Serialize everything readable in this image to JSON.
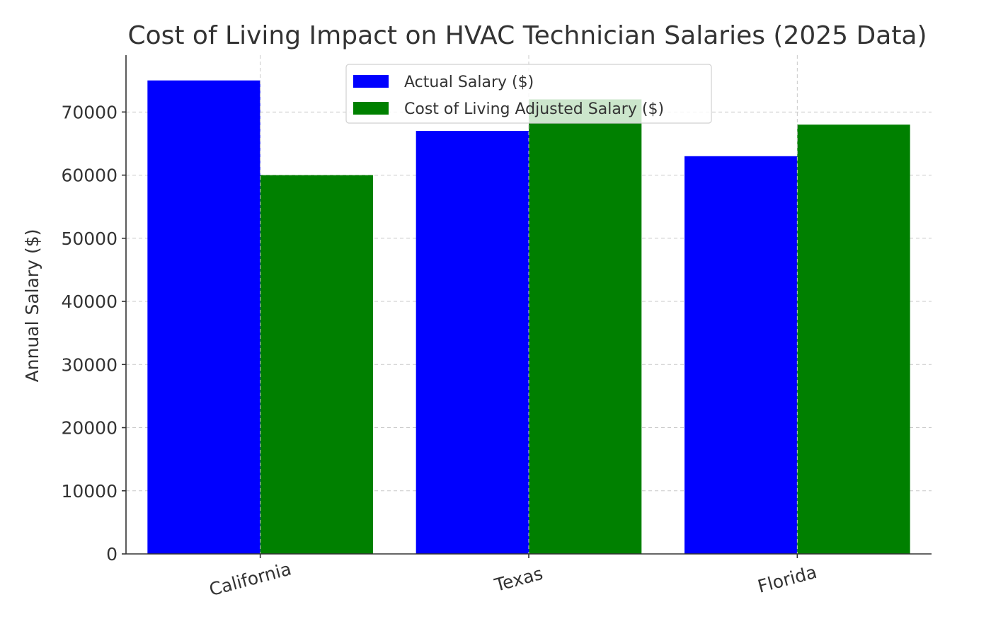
{
  "chart_data": {
    "type": "bar",
    "title": "Cost of Living Impact on HVAC Technician Salaries (2025 Data)",
    "xlabel": "",
    "ylabel": "Annual Salary ($)",
    "categories": [
      "California",
      "Texas",
      "Florida"
    ],
    "series": [
      {
        "name": "Actual Salary ($)",
        "color": "#0000ff",
        "values": [
          75000,
          67000,
          63000
        ]
      },
      {
        "name": "Cost of Living Adjusted Salary ($)",
        "color": "#008000",
        "values": [
          60000,
          72000,
          68000
        ]
      }
    ],
    "ylim": [
      0,
      79000
    ],
    "yticks": [
      0,
      10000,
      20000,
      30000,
      40000,
      50000,
      60000,
      70000
    ],
    "grid": true,
    "legend_position": "top-center"
  }
}
